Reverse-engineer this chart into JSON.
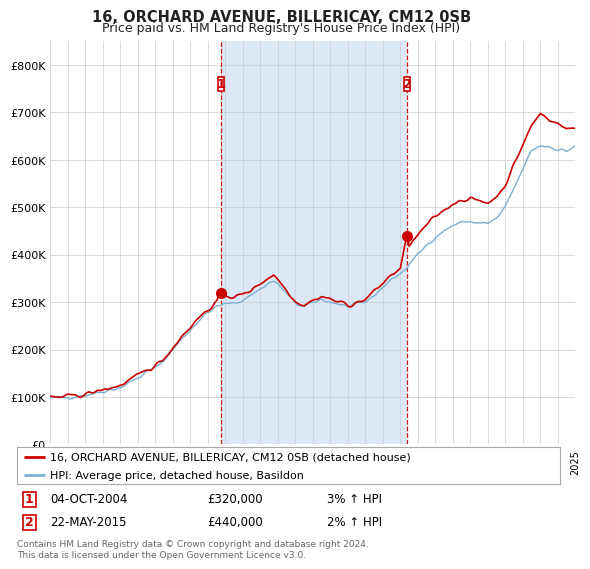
{
  "title": "16, ORCHARD AVENUE, BILLERICAY, CM12 0SB",
  "subtitle": "Price paid vs. HM Land Registry's House Price Index (HPI)",
  "legend_line1": "16, ORCHARD AVENUE, BILLERICAY, CM12 0SB (detached house)",
  "legend_line2": "HPI: Average price, detached house, Basildon",
  "sale1_date_label": "04-OCT-2004",
  "sale1_price_label": "£320,000",
  "sale1_hpi_label": "3% ↑ HPI",
  "sale1_year": 2004.75,
  "sale1_price": 320000,
  "sale2_date_label": "22-MAY-2015",
  "sale2_price_label": "£440,000",
  "sale2_hpi_label": "2% ↑ HPI",
  "sale2_year": 2015.38,
  "sale2_price": 440000,
  "footer": "Contains HM Land Registry data © Crown copyright and database right 2024.\nThis data is licensed under the Open Government Licence v3.0.",
  "ylim": [
    0,
    850000
  ],
  "yticks": [
    0,
    100000,
    200000,
    300000,
    400000,
    500000,
    600000,
    700000,
    800000
  ],
  "ytick_labels": [
    "£0",
    "£100K",
    "£200K",
    "£300K",
    "£400K",
    "£500K",
    "£600K",
    "£700K",
    "£800K"
  ],
  "plot_bg_color": "#ffffff",
  "shade_color": "#dce8f5",
  "property_color": "#cc0000",
  "hpi_color": "#7aafd4",
  "vline_color": "#cc0000",
  "marker_box_color": "#cc0000",
  "grid_color": "#cccccc",
  "xlim_start": 1995,
  "xlim_end": 2025
}
